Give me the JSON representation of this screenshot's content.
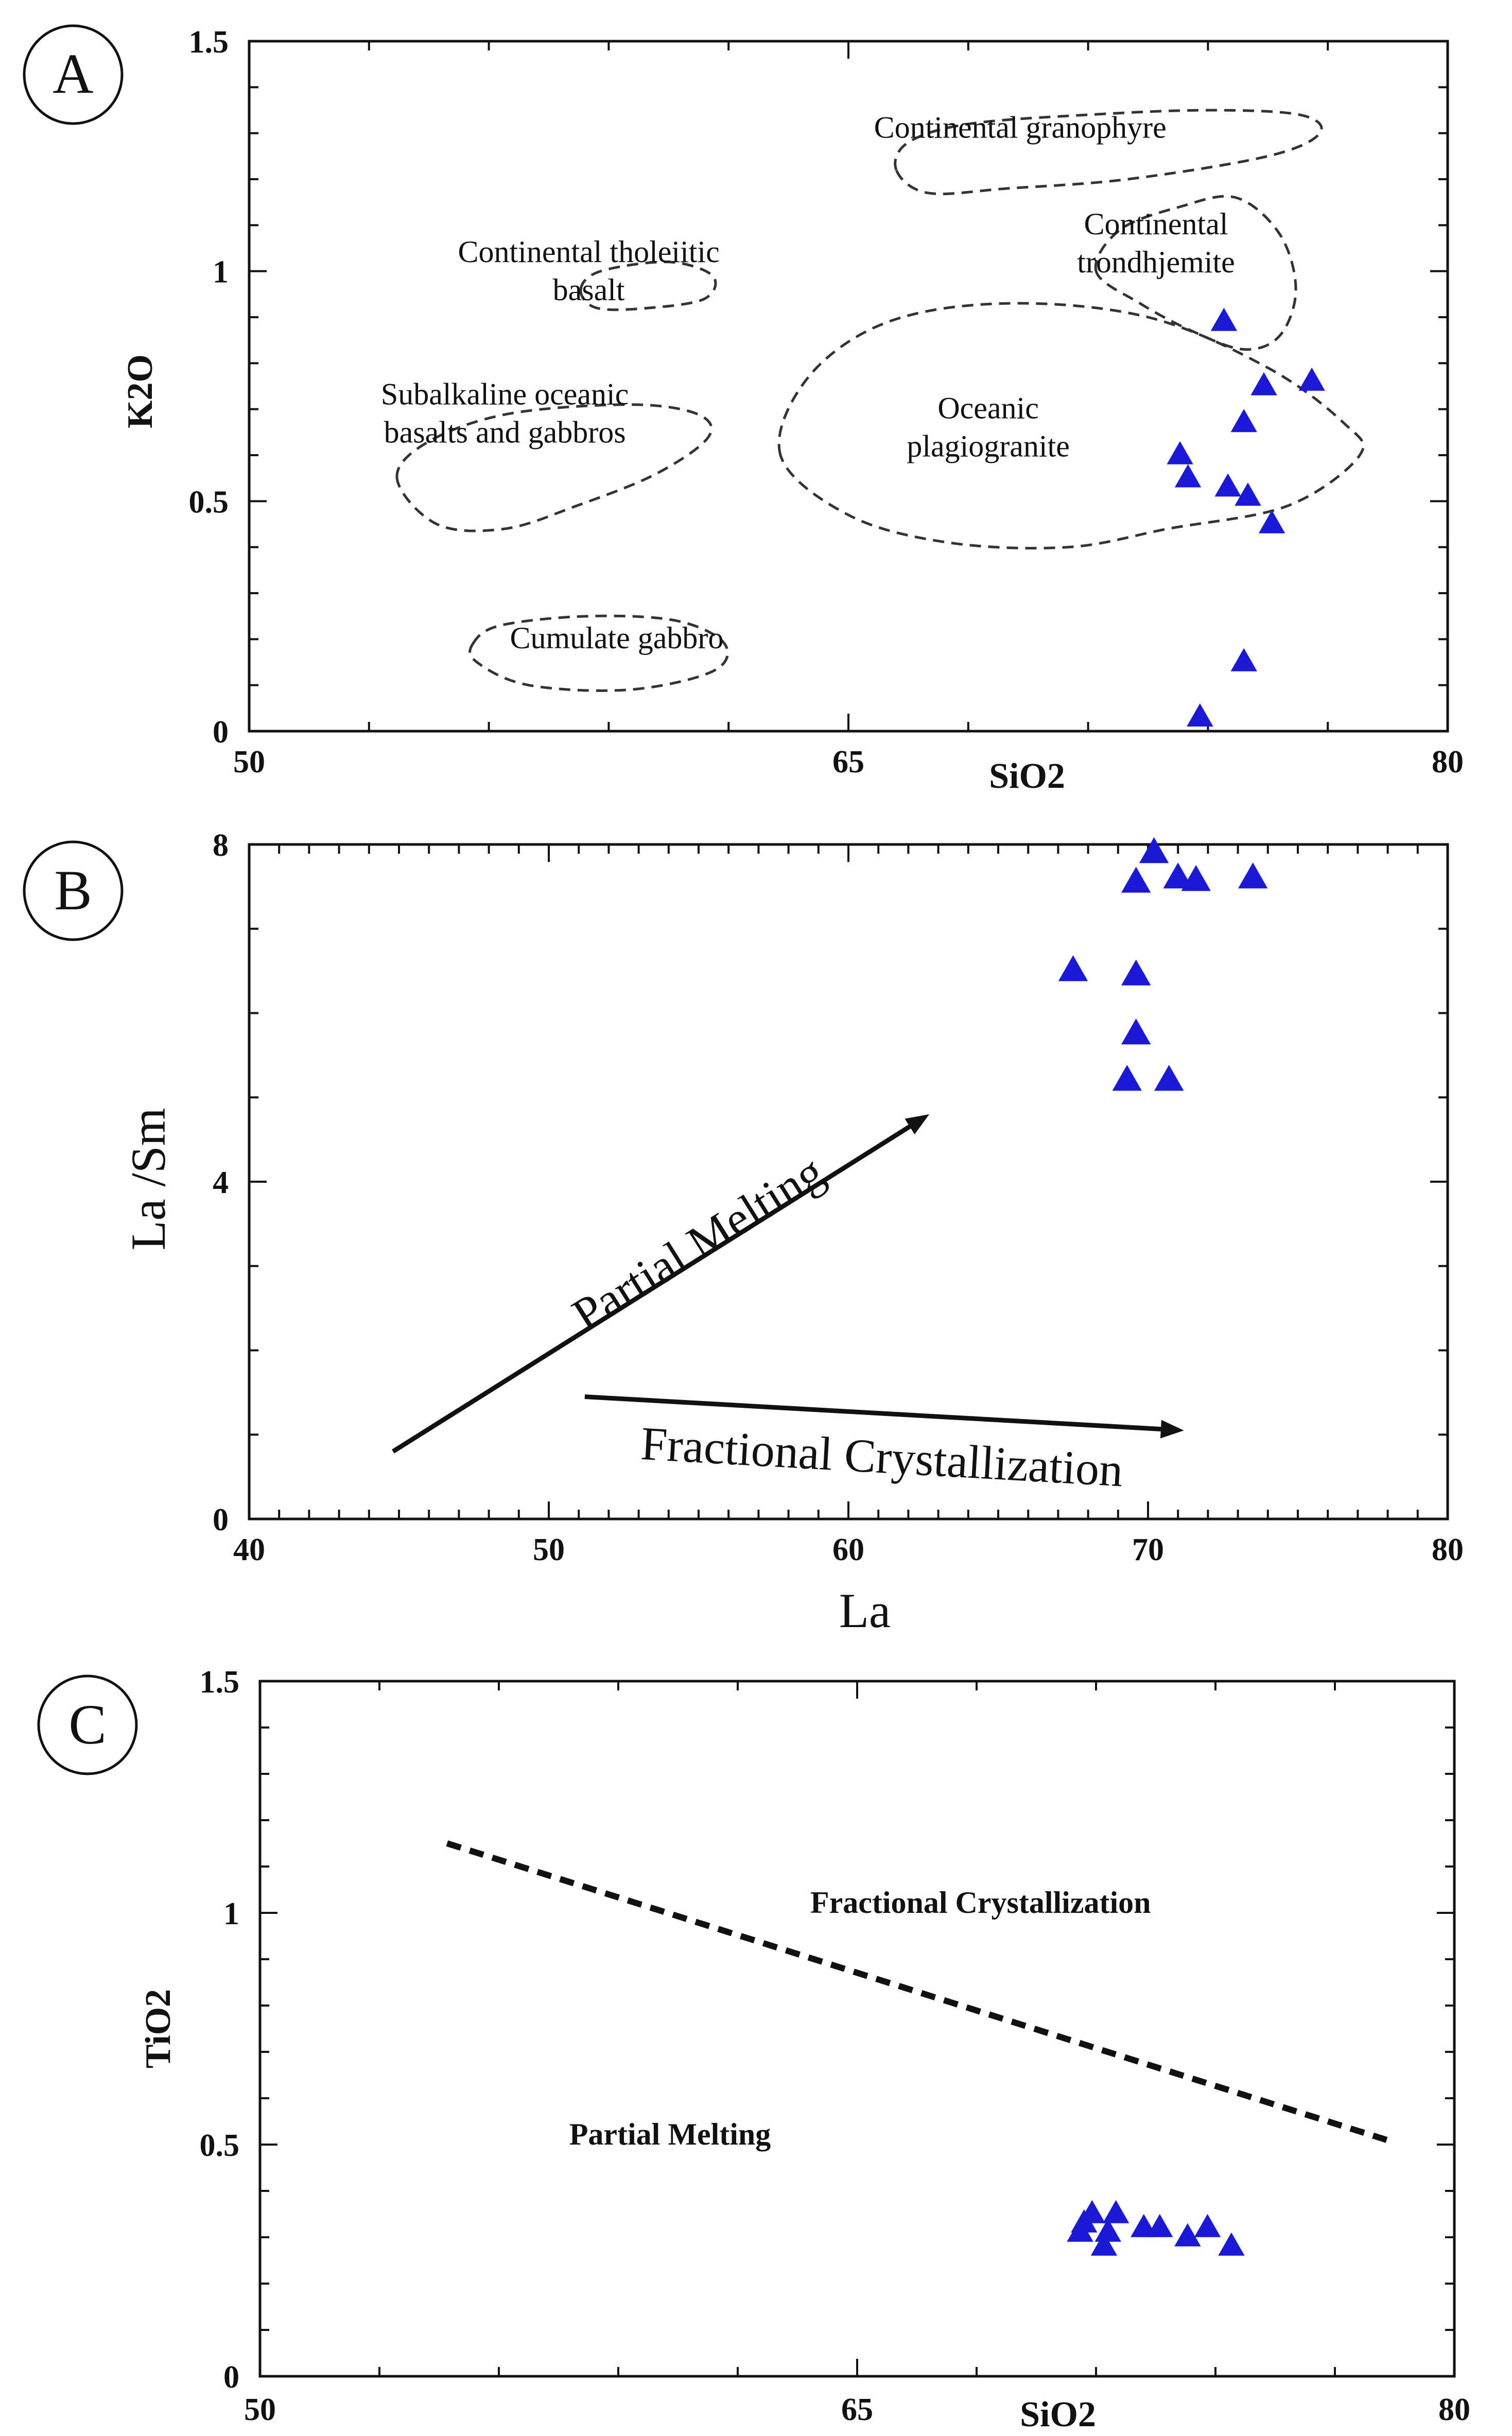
{
  "figure": {
    "colors": {
      "marker": "#1a1ad6",
      "axis": "#111111",
      "field_line": "#333333"
    }
  },
  "chart_data": [
    {
      "type": "scatter",
      "panel": "A",
      "title": "",
      "xlabel": "SiO2",
      "ylabel": "K2O",
      "xlim": [
        50,
        80
      ],
      "ylim": [
        0,
        1.5
      ],
      "x_ticks": [
        {
          "value": 50,
          "label": "50"
        },
        {
          "value": 65,
          "label": "65"
        },
        {
          "value": 80,
          "label": "80"
        }
      ],
      "y_ticks": [
        {
          "value": 0,
          "label": "0"
        },
        {
          "value": 0.5,
          "label": "0.5"
        },
        {
          "value": 1,
          "label": "1"
        },
        {
          "value": 1.5,
          "label": "1.5"
        }
      ],
      "fields": [
        {
          "name": "continental-granophyre",
          "lines": [
            "Continental granophyre"
          ],
          "label_at": [
            69.3,
            1.29
          ],
          "outline": [
            [
              66.2,
              1.22
            ],
            [
              66.5,
              1.28
            ],
            [
              68,
              1.32
            ],
            [
              71,
              1.34
            ],
            [
              74,
              1.35
            ],
            [
              76.3,
              1.34
            ],
            [
              76.8,
              1.3
            ],
            [
              75.5,
              1.25
            ],
            [
              72,
              1.2
            ],
            [
              69,
              1.18
            ],
            [
              67,
              1.17
            ],
            [
              66.2,
              1.22
            ]
          ]
        },
        {
          "name": "continental-trondhjemite",
          "lines": [
            "Continental",
            "trondhjemite"
          ],
          "label_at": [
            72.7,
            1.08
          ],
          "outline": [
            [
              71.2,
              1.0
            ],
            [
              71.8,
              1.09
            ],
            [
              73.3,
              1.14
            ],
            [
              74.7,
              1.16
            ],
            [
              75.8,
              1.08
            ],
            [
              76.2,
              0.96
            ],
            [
              75.8,
              0.86
            ],
            [
              74.9,
              0.83
            ],
            [
              73.6,
              0.87
            ],
            [
              72.3,
              0.93
            ],
            [
              71.2,
              1.0
            ]
          ]
        },
        {
          "name": "continental-tholeiitic-basalt",
          "lines": [
            "Continental tholeiitic",
            "basalt"
          ],
          "label_at": [
            58.5,
            1.02
          ],
          "outline": [
            [
              58.3,
              0.96
            ],
            [
              58.8,
              1.0
            ],
            [
              60.5,
              1.02
            ],
            [
              61.6,
              0.99
            ],
            [
              61.4,
              0.94
            ],
            [
              60,
              0.92
            ],
            [
              58.7,
              0.92
            ],
            [
              58.3,
              0.96
            ]
          ]
        },
        {
          "name": "oceanic-plagiogranite",
          "lines": [
            "Oceanic",
            "plagiogranite"
          ],
          "label_at": [
            68.5,
            0.68
          ],
          "outline": [
            [
              63.3,
              0.6
            ],
            [
              64,
              0.77
            ],
            [
              66,
              0.89
            ],
            [
              69,
              0.93
            ],
            [
              72.5,
              0.9
            ],
            [
              75.5,
              0.79
            ],
            [
              77.4,
              0.67
            ],
            [
              77.8,
              0.6
            ],
            [
              76,
              0.49
            ],
            [
              73,
              0.44
            ],
            [
              70.5,
              0.4
            ],
            [
              67.5,
              0.41
            ],
            [
              65,
              0.47
            ],
            [
              63.3,
              0.6
            ]
          ]
        },
        {
          "name": "subalkaline-oceanic-basalts-gabbros",
          "lines": [
            "Subalkaline oceanic",
            "basalts and gabbros"
          ],
          "label_at": [
            56.4,
            0.71
          ],
          "outline": [
            [
              53.7,
              0.55
            ],
            [
              54.5,
              0.63
            ],
            [
              56.5,
              0.69
            ],
            [
              59.5,
              0.71
            ],
            [
              61.2,
              0.69
            ],
            [
              61.5,
              0.64
            ],
            [
              60.2,
              0.56
            ],
            [
              58.2,
              0.49
            ],
            [
              56.4,
              0.44
            ],
            [
              54.7,
              0.45
            ],
            [
              53.7,
              0.55
            ]
          ]
        },
        {
          "name": "cumulate-gabbro",
          "lines": [
            "Cumulate gabbro"
          ],
          "label_at": [
            59.2,
            0.18
          ],
          "outline": [
            [
              55.6,
              0.19
            ],
            [
              56.3,
              0.23
            ],
            [
              58.5,
              0.25
            ],
            [
              60.7,
              0.24
            ],
            [
              61.9,
              0.19
            ],
            [
              61.6,
              0.13
            ],
            [
              59.5,
              0.09
            ],
            [
              57,
              0.1
            ],
            [
              55.7,
              0.15
            ],
            [
              55.6,
              0.19
            ]
          ]
        }
      ],
      "series": [
        {
          "name": "samples",
          "marker": "triangle",
          "x": [
            74.4,
            75.4,
            74.9,
            73.3,
            73.5,
            74.5,
            75.0,
            75.6,
            76.6,
            74.9,
            73.8
          ],
          "y": [
            0.89,
            0.75,
            0.67,
            0.6,
            0.55,
            0.53,
            0.51,
            0.45,
            0.76,
            0.15,
            0.03
          ]
        }
      ]
    },
    {
      "type": "scatter",
      "panel": "B",
      "title": "",
      "xlabel": "La",
      "ylabel": "La /Sm",
      "xlim": [
        40,
        80
      ],
      "ylim": [
        0,
        8
      ],
      "x_ticks": [
        {
          "value": 40,
          "label": "40"
        },
        {
          "value": 50,
          "label": "50"
        },
        {
          "value": 60,
          "label": "60"
        },
        {
          "value": 70,
          "label": "70"
        },
        {
          "value": 80,
          "label": "80"
        }
      ],
      "y_ticks": [
        {
          "value": 0,
          "label": "0"
        },
        {
          "value": 4,
          "label": "4"
        },
        {
          "value": 8,
          "label": "8"
        }
      ],
      "annotations": [
        {
          "name": "partial-melting-arrow",
          "text": "Partial Melting",
          "from": [
            44.8,
            0.8
          ],
          "to": [
            62.7,
            4.8
          ]
        },
        {
          "name": "fractional-crystallization-arrow",
          "text": "Fractional Crystallization",
          "from": [
            51.2,
            1.45
          ],
          "to": [
            71.2,
            1.05
          ]
        }
      ],
      "series": [
        {
          "name": "samples",
          "marker": "triangle",
          "x": [
            70.2,
            69.6,
            71.0,
            71.6,
            73.5,
            67.5,
            69.6,
            69.6,
            69.3,
            70.7
          ],
          "y": [
            7.9,
            7.55,
            7.6,
            7.57,
            7.6,
            6.5,
            6.45,
            5.75,
            5.2,
            5.2
          ]
        }
      ]
    },
    {
      "type": "scatter",
      "panel": "C",
      "title": "",
      "xlabel": "SiO2",
      "ylabel": "TiO2",
      "xlim": [
        50,
        80
      ],
      "ylim": [
        0,
        1.5
      ],
      "x_ticks": [
        {
          "value": 50,
          "label": "50"
        },
        {
          "value": 65,
          "label": "65"
        },
        {
          "value": 80,
          "label": "80"
        }
      ],
      "y_ticks": [
        {
          "value": 0,
          "label": "0"
        },
        {
          "value": 0.5,
          "label": "0.5"
        },
        {
          "value": 1,
          "label": "1"
        },
        {
          "value": 1.5,
          "label": "1.5"
        }
      ],
      "boundary": {
        "x": [
          54.7,
          78.3
        ],
        "y": [
          1.15,
          0.51
        ]
      },
      "region_labels": [
        {
          "name": "fractional-crystallization",
          "text": "Fractional Crystallization",
          "at": [
            68.1,
            1.0
          ]
        },
        {
          "name": "partial-melting",
          "text": "Partial Melting",
          "at": [
            60.3,
            0.5
          ]
        }
      ],
      "series": [
        {
          "name": "samples",
          "marker": "triangle",
          "x": [
            70.7,
            70.9,
            71.2,
            71.5,
            72.2,
            72.6,
            73.3,
            73.8,
            74.4,
            71.3,
            70.6
          ],
          "y": [
            0.33,
            0.35,
            0.28,
            0.35,
            0.32,
            0.32,
            0.3,
            0.32,
            0.28,
            0.31,
            0.31
          ]
        }
      ]
    }
  ],
  "panels": {
    "a": {
      "label": "A"
    },
    "b": {
      "label": "B"
    },
    "c": {
      "label": "C"
    }
  }
}
